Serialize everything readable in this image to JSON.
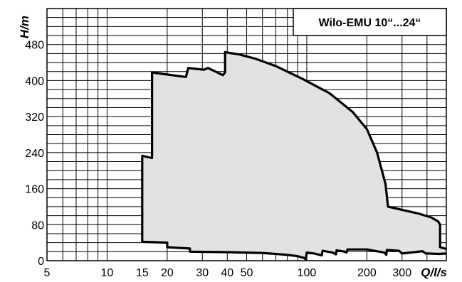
{
  "chart_data": {
    "type": "area",
    "title": "Wilo-EMU 10“...24“",
    "xlabel": "Q/l/s",
    "ylabel": "H/m",
    "xscale": "log",
    "xlim": [
      5,
      500
    ],
    "ylim": [
      0,
      560
    ],
    "grid": true,
    "title_placement": "top-right",
    "x_ticks": [
      {
        "value": 5,
        "label": "5"
      },
      {
        "value": 10,
        "label": "10"
      },
      {
        "value": 15,
        "label": "15"
      },
      {
        "value": 20,
        "label": "20"
      },
      {
        "value": 30,
        "label": "30"
      },
      {
        "value": 40,
        "label": "40"
      },
      {
        "value": 50,
        "label": "50"
      },
      {
        "value": 100,
        "label": "100"
      },
      {
        "value": 200,
        "label": "200"
      },
      {
        "value": 300,
        "label": "300"
      }
    ],
    "y_ticks": [
      0,
      80,
      160,
      240,
      320,
      400,
      480
    ],
    "fill_color": "#e2e2e2",
    "line_color": "#000000",
    "upper_boundary": {
      "x": [
        15,
        15,
        16.8,
        16.8,
        24.8,
        25.5,
        30.5,
        32,
        38,
        39,
        39,
        46,
        55,
        70,
        95,
        130,
        170,
        200,
        225,
        248,
        255,
        300,
        360,
        420,
        455,
        465,
        465,
        500
      ],
      "y": [
        40,
        233,
        228,
        418,
        408,
        428,
        424,
        428,
        412,
        418,
        463,
        458,
        449,
        432,
        404,
        372,
        330,
        292,
        240,
        170,
        120,
        113,
        105,
        96,
        87,
        80,
        30,
        26
      ]
    },
    "lower_boundary": {
      "x": [
        15,
        20,
        20,
        26,
        26,
        40,
        50,
        60,
        70,
        80,
        90,
        97,
        99,
        100,
        109,
        119,
        120,
        135,
        140,
        141,
        155,
        158,
        160,
        200,
        245,
        250,
        252,
        290,
        295,
        300,
        380,
        395,
        400,
        460,
        500
      ],
      "y": [
        42,
        40,
        30,
        27,
        20,
        19,
        18,
        17,
        15,
        13,
        10,
        6,
        3,
        18,
        16,
        12,
        22,
        18,
        14,
        23,
        20,
        18,
        25,
        25,
        18,
        13,
        24,
        22,
        19,
        16,
        21,
        16,
        16,
        15,
        16
      ]
    }
  }
}
